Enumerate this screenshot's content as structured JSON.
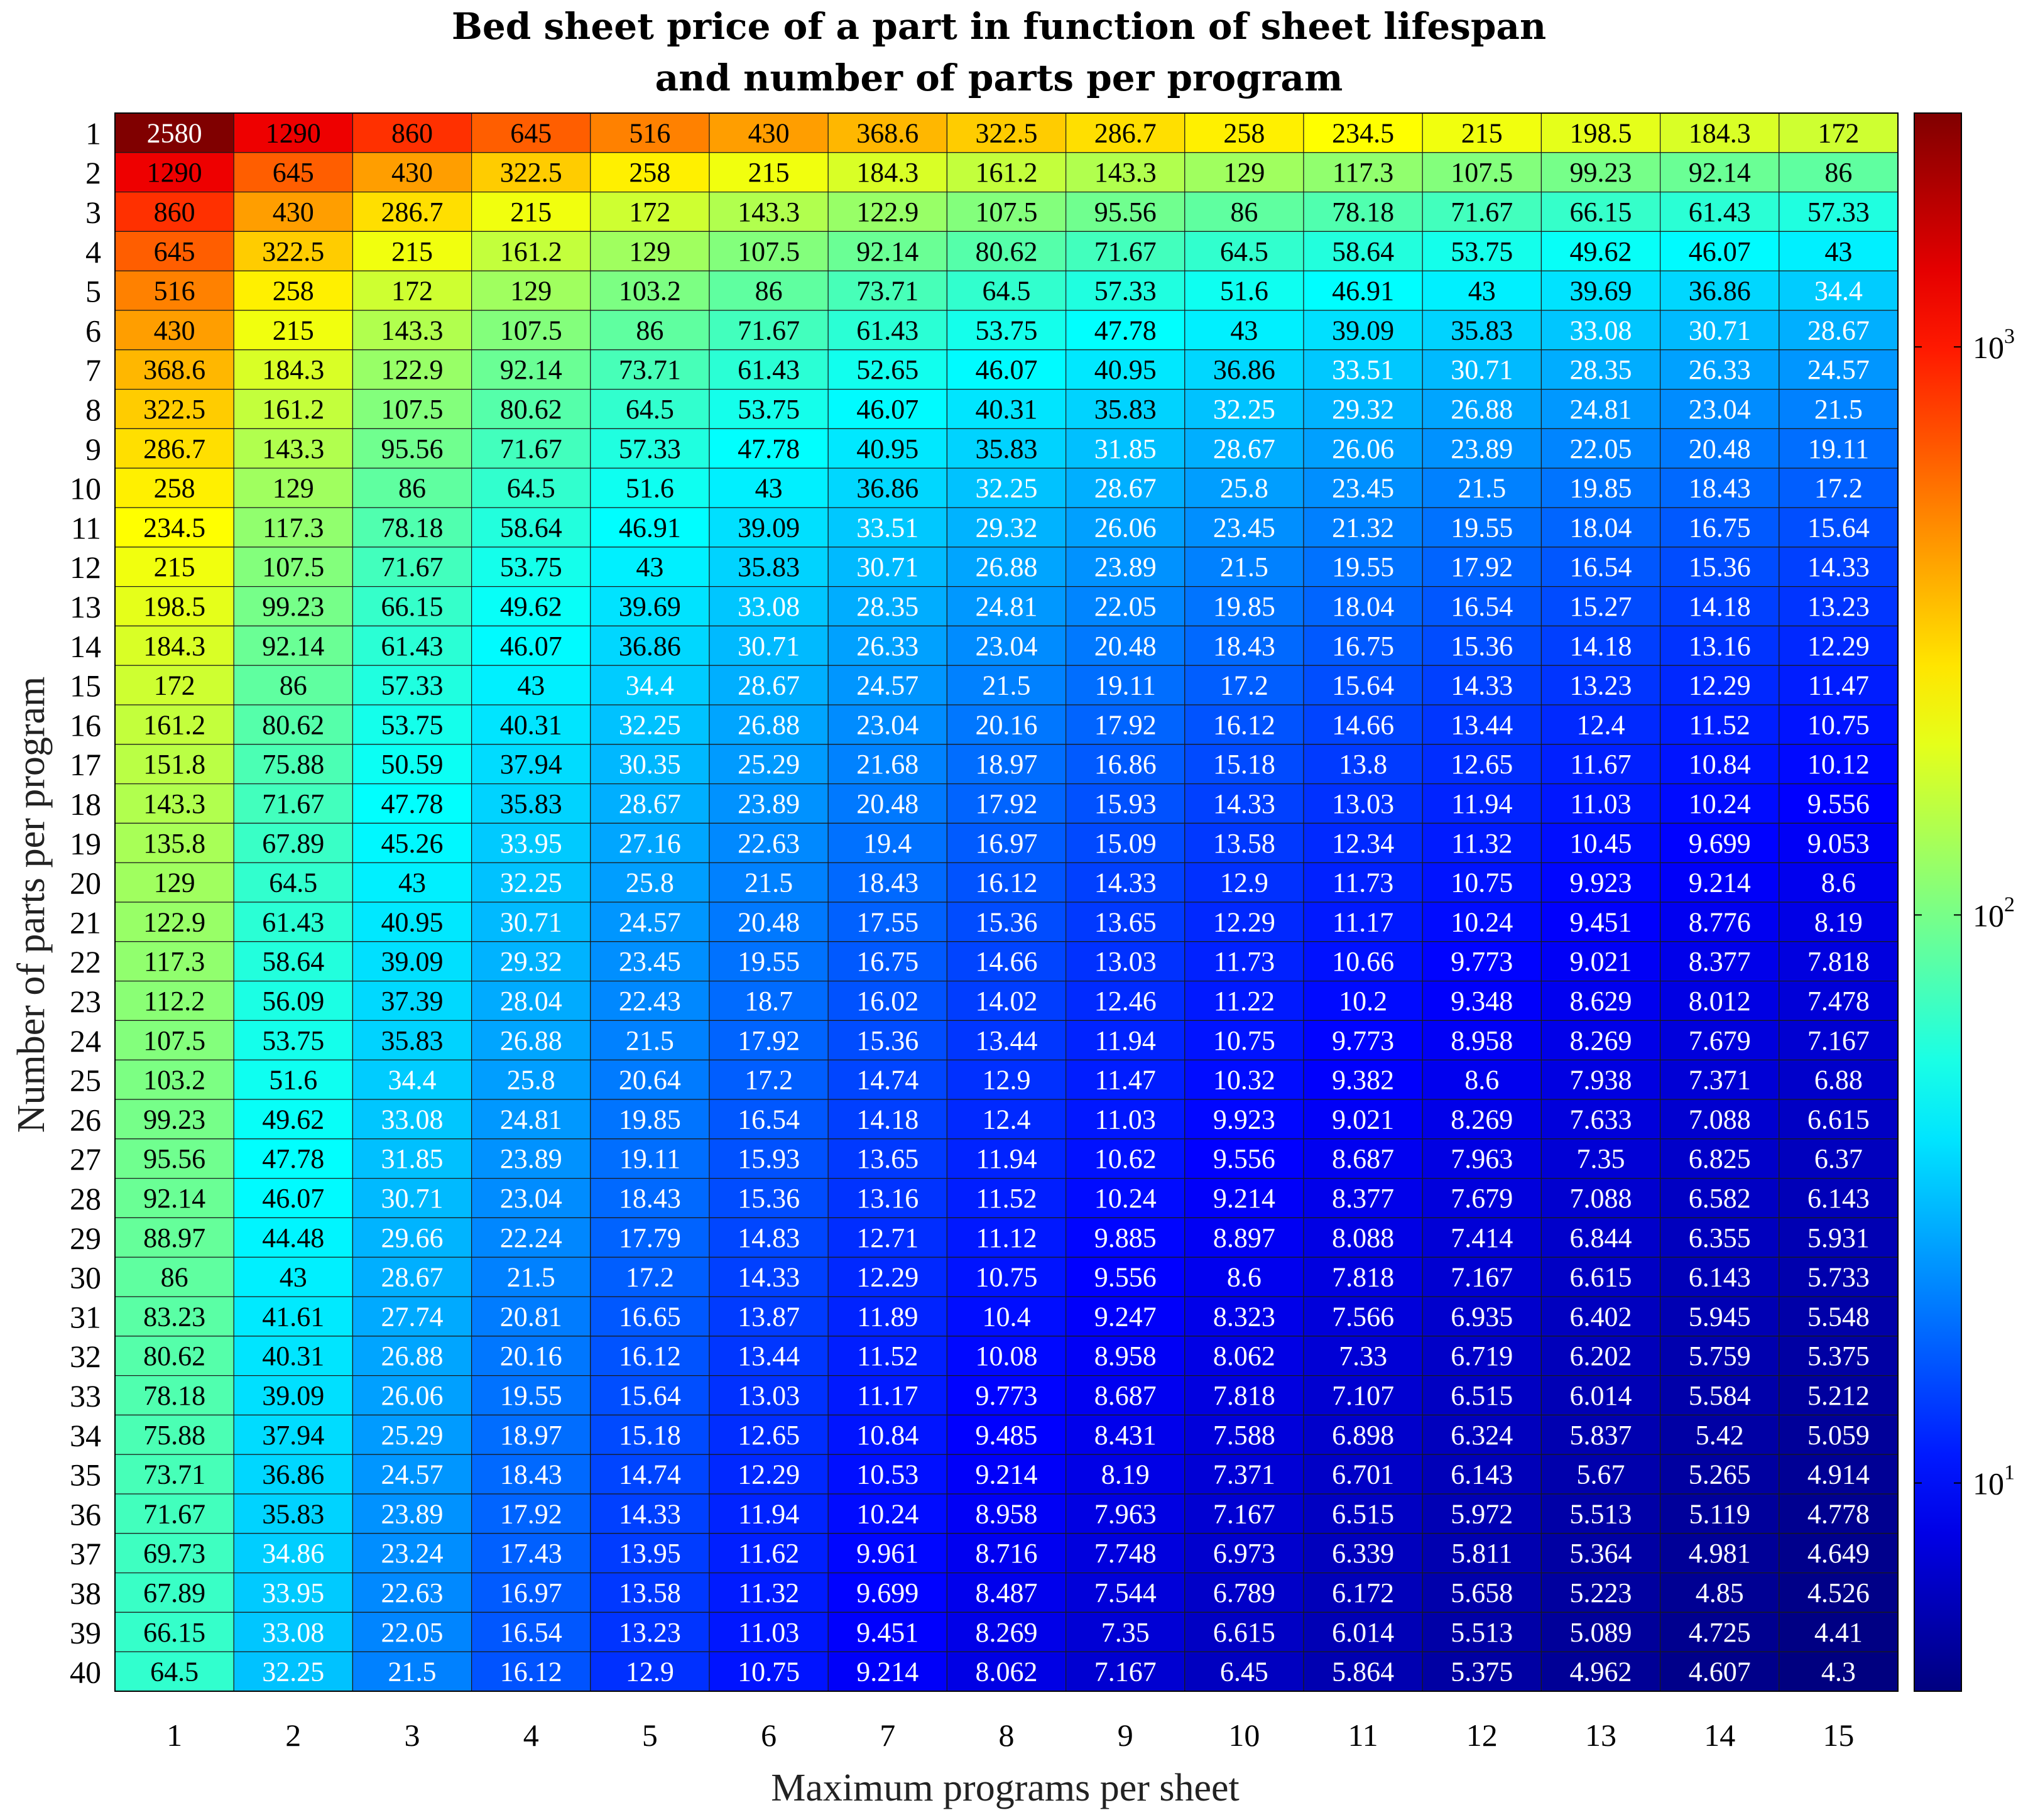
{
  "chart_data": {
    "type": "heatmap",
    "title": [
      "Bed sheet price of a part in function of sheet lifespan",
      "and number of parts per program"
    ],
    "xlabel": "Maximum programs per sheet",
    "ylabel": "Number of parts per program",
    "x": [
      1,
      2,
      3,
      4,
      5,
      6,
      7,
      8,
      9,
      10,
      11,
      12,
      13,
      14,
      15
    ],
    "y": [
      1,
      2,
      3,
      4,
      5,
      6,
      7,
      8,
      9,
      10,
      11,
      12,
      13,
      14,
      15,
      16,
      17,
      18,
      19,
      20,
      21,
      22,
      23,
      24,
      25,
      26,
      27,
      28,
      29,
      30,
      31,
      32,
      33,
      34,
      35,
      36,
      37,
      38,
      39,
      40
    ],
    "values": [
      [
        "2580",
        "1290",
        "860",
        "645",
        "516",
        "430",
        "368.6",
        "322.5",
        "286.7",
        "258",
        "234.5",
        "215",
        "198.5",
        "184.3",
        "172"
      ],
      [
        "1290",
        "645",
        "430",
        "322.5",
        "258",
        "215",
        "184.3",
        "161.2",
        "143.3",
        "129",
        "117.3",
        "107.5",
        "99.23",
        "92.14",
        "86"
      ],
      [
        "860",
        "430",
        "286.7",
        "215",
        "172",
        "143.3",
        "122.9",
        "107.5",
        "95.56",
        "86",
        "78.18",
        "71.67",
        "66.15",
        "61.43",
        "57.33"
      ],
      [
        "645",
        "322.5",
        "215",
        "161.2",
        "129",
        "107.5",
        "92.14",
        "80.62",
        "71.67",
        "64.5",
        "58.64",
        "53.75",
        "49.62",
        "46.07",
        "43"
      ],
      [
        "516",
        "258",
        "172",
        "129",
        "103.2",
        "86",
        "73.71",
        "64.5",
        "57.33",
        "51.6",
        "46.91",
        "43",
        "39.69",
        "36.86",
        "34.4"
      ],
      [
        "430",
        "215",
        "143.3",
        "107.5",
        "86",
        "71.67",
        "61.43",
        "53.75",
        "47.78",
        "43",
        "39.09",
        "35.83",
        "33.08",
        "30.71",
        "28.67"
      ],
      [
        "368.6",
        "184.3",
        "122.9",
        "92.14",
        "73.71",
        "61.43",
        "52.65",
        "46.07",
        "40.95",
        "36.86",
        "33.51",
        "30.71",
        "28.35",
        "26.33",
        "24.57"
      ],
      [
        "322.5",
        "161.2",
        "107.5",
        "80.62",
        "64.5",
        "53.75",
        "46.07",
        "40.31",
        "35.83",
        "32.25",
        "29.32",
        "26.88",
        "24.81",
        "23.04",
        "21.5"
      ],
      [
        "286.7",
        "143.3",
        "95.56",
        "71.67",
        "57.33",
        "47.78",
        "40.95",
        "35.83",
        "31.85",
        "28.67",
        "26.06",
        "23.89",
        "22.05",
        "20.48",
        "19.11"
      ],
      [
        "258",
        "129",
        "86",
        "64.5",
        "51.6",
        "43",
        "36.86",
        "32.25",
        "28.67",
        "25.8",
        "23.45",
        "21.5",
        "19.85",
        "18.43",
        "17.2"
      ],
      [
        "234.5",
        "117.3",
        "78.18",
        "58.64",
        "46.91",
        "39.09",
        "33.51",
        "29.32",
        "26.06",
        "23.45",
        "21.32",
        "19.55",
        "18.04",
        "16.75",
        "15.64"
      ],
      [
        "215",
        "107.5",
        "71.67",
        "53.75",
        "43",
        "35.83",
        "30.71",
        "26.88",
        "23.89",
        "21.5",
        "19.55",
        "17.92",
        "16.54",
        "15.36",
        "14.33"
      ],
      [
        "198.5",
        "99.23",
        "66.15",
        "49.62",
        "39.69",
        "33.08",
        "28.35",
        "24.81",
        "22.05",
        "19.85",
        "18.04",
        "16.54",
        "15.27",
        "14.18",
        "13.23"
      ],
      [
        "184.3",
        "92.14",
        "61.43",
        "46.07",
        "36.86",
        "30.71",
        "26.33",
        "23.04",
        "20.48",
        "18.43",
        "16.75",
        "15.36",
        "14.18",
        "13.16",
        "12.29"
      ],
      [
        "172",
        "86",
        "57.33",
        "43",
        "34.4",
        "28.67",
        "24.57",
        "21.5",
        "19.11",
        "17.2",
        "15.64",
        "14.33",
        "13.23",
        "12.29",
        "11.47"
      ],
      [
        "161.2",
        "80.62",
        "53.75",
        "40.31",
        "32.25",
        "26.88",
        "23.04",
        "20.16",
        "17.92",
        "16.12",
        "14.66",
        "13.44",
        "12.4",
        "11.52",
        "10.75"
      ],
      [
        "151.8",
        "75.88",
        "50.59",
        "37.94",
        "30.35",
        "25.29",
        "21.68",
        "18.97",
        "16.86",
        "15.18",
        "13.8",
        "12.65",
        "11.67",
        "10.84",
        "10.12"
      ],
      [
        "143.3",
        "71.67",
        "47.78",
        "35.83",
        "28.67",
        "23.89",
        "20.48",
        "17.92",
        "15.93",
        "14.33",
        "13.03",
        "11.94",
        "11.03",
        "10.24",
        "9.556"
      ],
      [
        "135.8",
        "67.89",
        "45.26",
        "33.95",
        "27.16",
        "22.63",
        "19.4",
        "16.97",
        "15.09",
        "13.58",
        "12.34",
        "11.32",
        "10.45",
        "9.699",
        "9.053"
      ],
      [
        "129",
        "64.5",
        "43",
        "32.25",
        "25.8",
        "21.5",
        "18.43",
        "16.12",
        "14.33",
        "12.9",
        "11.73",
        "10.75",
        "9.923",
        "9.214",
        "8.6"
      ],
      [
        "122.9",
        "61.43",
        "40.95",
        "30.71",
        "24.57",
        "20.48",
        "17.55",
        "15.36",
        "13.65",
        "12.29",
        "11.17",
        "10.24",
        "9.451",
        "8.776",
        "8.19"
      ],
      [
        "117.3",
        "58.64",
        "39.09",
        "29.32",
        "23.45",
        "19.55",
        "16.75",
        "14.66",
        "13.03",
        "11.73",
        "10.66",
        "9.773",
        "9.021",
        "8.377",
        "7.818"
      ],
      [
        "112.2",
        "56.09",
        "37.39",
        "28.04",
        "22.43",
        "18.7",
        "16.02",
        "14.02",
        "12.46",
        "11.22",
        "10.2",
        "9.348",
        "8.629",
        "8.012",
        "7.478"
      ],
      [
        "107.5",
        "53.75",
        "35.83",
        "26.88",
        "21.5",
        "17.92",
        "15.36",
        "13.44",
        "11.94",
        "10.75",
        "9.773",
        "8.958",
        "8.269",
        "7.679",
        "7.167"
      ],
      [
        "103.2",
        "51.6",
        "34.4",
        "25.8",
        "20.64",
        "17.2",
        "14.74",
        "12.9",
        "11.47",
        "10.32",
        "9.382",
        "8.6",
        "7.938",
        "7.371",
        "6.88"
      ],
      [
        "99.23",
        "49.62",
        "33.08",
        "24.81",
        "19.85",
        "16.54",
        "14.18",
        "12.4",
        "11.03",
        "9.923",
        "9.021",
        "8.269",
        "7.633",
        "7.088",
        "6.615"
      ],
      [
        "95.56",
        "47.78",
        "31.85",
        "23.89",
        "19.11",
        "15.93",
        "13.65",
        "11.94",
        "10.62",
        "9.556",
        "8.687",
        "7.963",
        "7.35",
        "6.825",
        "6.37"
      ],
      [
        "92.14",
        "46.07",
        "30.71",
        "23.04",
        "18.43",
        "15.36",
        "13.16",
        "11.52",
        "10.24",
        "9.214",
        "8.377",
        "7.679",
        "7.088",
        "6.582",
        "6.143"
      ],
      [
        "88.97",
        "44.48",
        "29.66",
        "22.24",
        "17.79",
        "14.83",
        "12.71",
        "11.12",
        "9.885",
        "8.897",
        "8.088",
        "7.414",
        "6.844",
        "6.355",
        "5.931"
      ],
      [
        "86",
        "43",
        "28.67",
        "21.5",
        "17.2",
        "14.33",
        "12.29",
        "10.75",
        "9.556",
        "8.6",
        "7.818",
        "7.167",
        "6.615",
        "6.143",
        "5.733"
      ],
      [
        "83.23",
        "41.61",
        "27.74",
        "20.81",
        "16.65",
        "13.87",
        "11.89",
        "10.4",
        "9.247",
        "8.323",
        "7.566",
        "6.935",
        "6.402",
        "5.945",
        "5.548"
      ],
      [
        "80.62",
        "40.31",
        "26.88",
        "20.16",
        "16.12",
        "13.44",
        "11.52",
        "10.08",
        "8.958",
        "8.062",
        "7.33",
        "6.719",
        "6.202",
        "5.759",
        "5.375"
      ],
      [
        "78.18",
        "39.09",
        "26.06",
        "19.55",
        "15.64",
        "13.03",
        "11.17",
        "9.773",
        "8.687",
        "7.818",
        "7.107",
        "6.515",
        "6.014",
        "5.584",
        "5.212"
      ],
      [
        "75.88",
        "37.94",
        "25.29",
        "18.97",
        "15.18",
        "12.65",
        "10.84",
        "9.485",
        "8.431",
        "7.588",
        "6.898",
        "6.324",
        "5.837",
        "5.42",
        "5.059"
      ],
      [
        "73.71",
        "36.86",
        "24.57",
        "18.43",
        "14.74",
        "12.29",
        "10.53",
        "9.214",
        "8.19",
        "7.371",
        "6.701",
        "6.143",
        "5.67",
        "5.265",
        "4.914"
      ],
      [
        "71.67",
        "35.83",
        "23.89",
        "17.92",
        "14.33",
        "11.94",
        "10.24",
        "8.958",
        "7.963",
        "7.167",
        "6.515",
        "5.972",
        "5.513",
        "5.119",
        "4.778"
      ],
      [
        "69.73",
        "34.86",
        "23.24",
        "17.43",
        "13.95",
        "11.62",
        "9.961",
        "8.716",
        "7.748",
        "6.973",
        "6.339",
        "5.811",
        "5.364",
        "4.981",
        "4.649"
      ],
      [
        "67.89",
        "33.95",
        "22.63",
        "16.97",
        "13.58",
        "11.32",
        "9.699",
        "8.487",
        "7.544",
        "6.789",
        "6.172",
        "5.658",
        "5.223",
        "4.85",
        "4.526"
      ],
      [
        "66.15",
        "33.08",
        "22.05",
        "16.54",
        "13.23",
        "11.03",
        "9.451",
        "8.269",
        "7.35",
        "6.615",
        "6.014",
        "5.513",
        "5.089",
        "4.725",
        "4.41"
      ],
      [
        "64.5",
        "32.25",
        "21.5",
        "16.12",
        "12.9",
        "10.75",
        "9.214",
        "8.062",
        "7.167",
        "6.45",
        "5.864",
        "5.375",
        "4.962",
        "4.607",
        "4.3"
      ]
    ],
    "colorbar": {
      "scale": "log",
      "colormap": "jet",
      "range": [
        4.3,
        2580
      ],
      "ticks": [
        {
          "base": "10",
          "exp": "1",
          "value": 10
        },
        {
          "base": "10",
          "exp": "2",
          "value": 100
        },
        {
          "base": "10",
          "exp": "3",
          "value": 1000
        }
      ]
    },
    "grid": false,
    "legend": "colorbar-right"
  }
}
